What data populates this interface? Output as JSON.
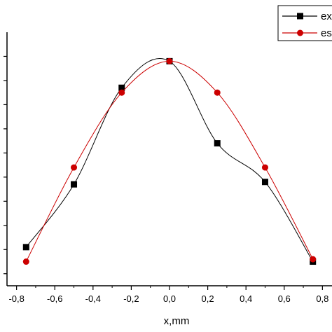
{
  "chart_data": {
    "type": "line",
    "xlabel": "x,mm",
    "ylabel": "",
    "xlim": [
      -0.85,
      0.85
    ],
    "x_ticks": [
      -0.8,
      -0.6,
      -0.4,
      -0.2,
      0.0,
      0.2,
      0.4,
      0.6,
      0.8
    ],
    "x_tick_labels": [
      "-0,8",
      "-0,6",
      "-0,4",
      "-0,2",
      "0,0",
      "0,2",
      "0,4",
      "0,6",
      "0,8"
    ],
    "ylim": [
      0,
      1.05
    ],
    "y_ticks": [
      0.05,
      0.15,
      0.25,
      0.35,
      0.45,
      0.55,
      0.65,
      0.75,
      0.85,
      0.95
    ],
    "grid": false,
    "legend_placement": "top-right",
    "series": [
      {
        "name": "ex",
        "color": "#000000",
        "marker": "square",
        "x": [
          -0.75,
          -0.5,
          -0.25,
          0.0,
          0.25,
          0.5,
          0.75
        ],
        "values": [
          0.16,
          0.42,
          0.82,
          0.93,
          0.59,
          0.43,
          0.1
        ]
      },
      {
        "name": "es",
        "color": "#cc0000",
        "marker": "circle",
        "x": [
          -0.75,
          -0.5,
          -0.25,
          0.0,
          0.25,
          0.5,
          0.75
        ],
        "values": [
          0.1,
          0.49,
          0.8,
          0.93,
          0.8,
          0.49,
          0.11
        ]
      }
    ]
  }
}
